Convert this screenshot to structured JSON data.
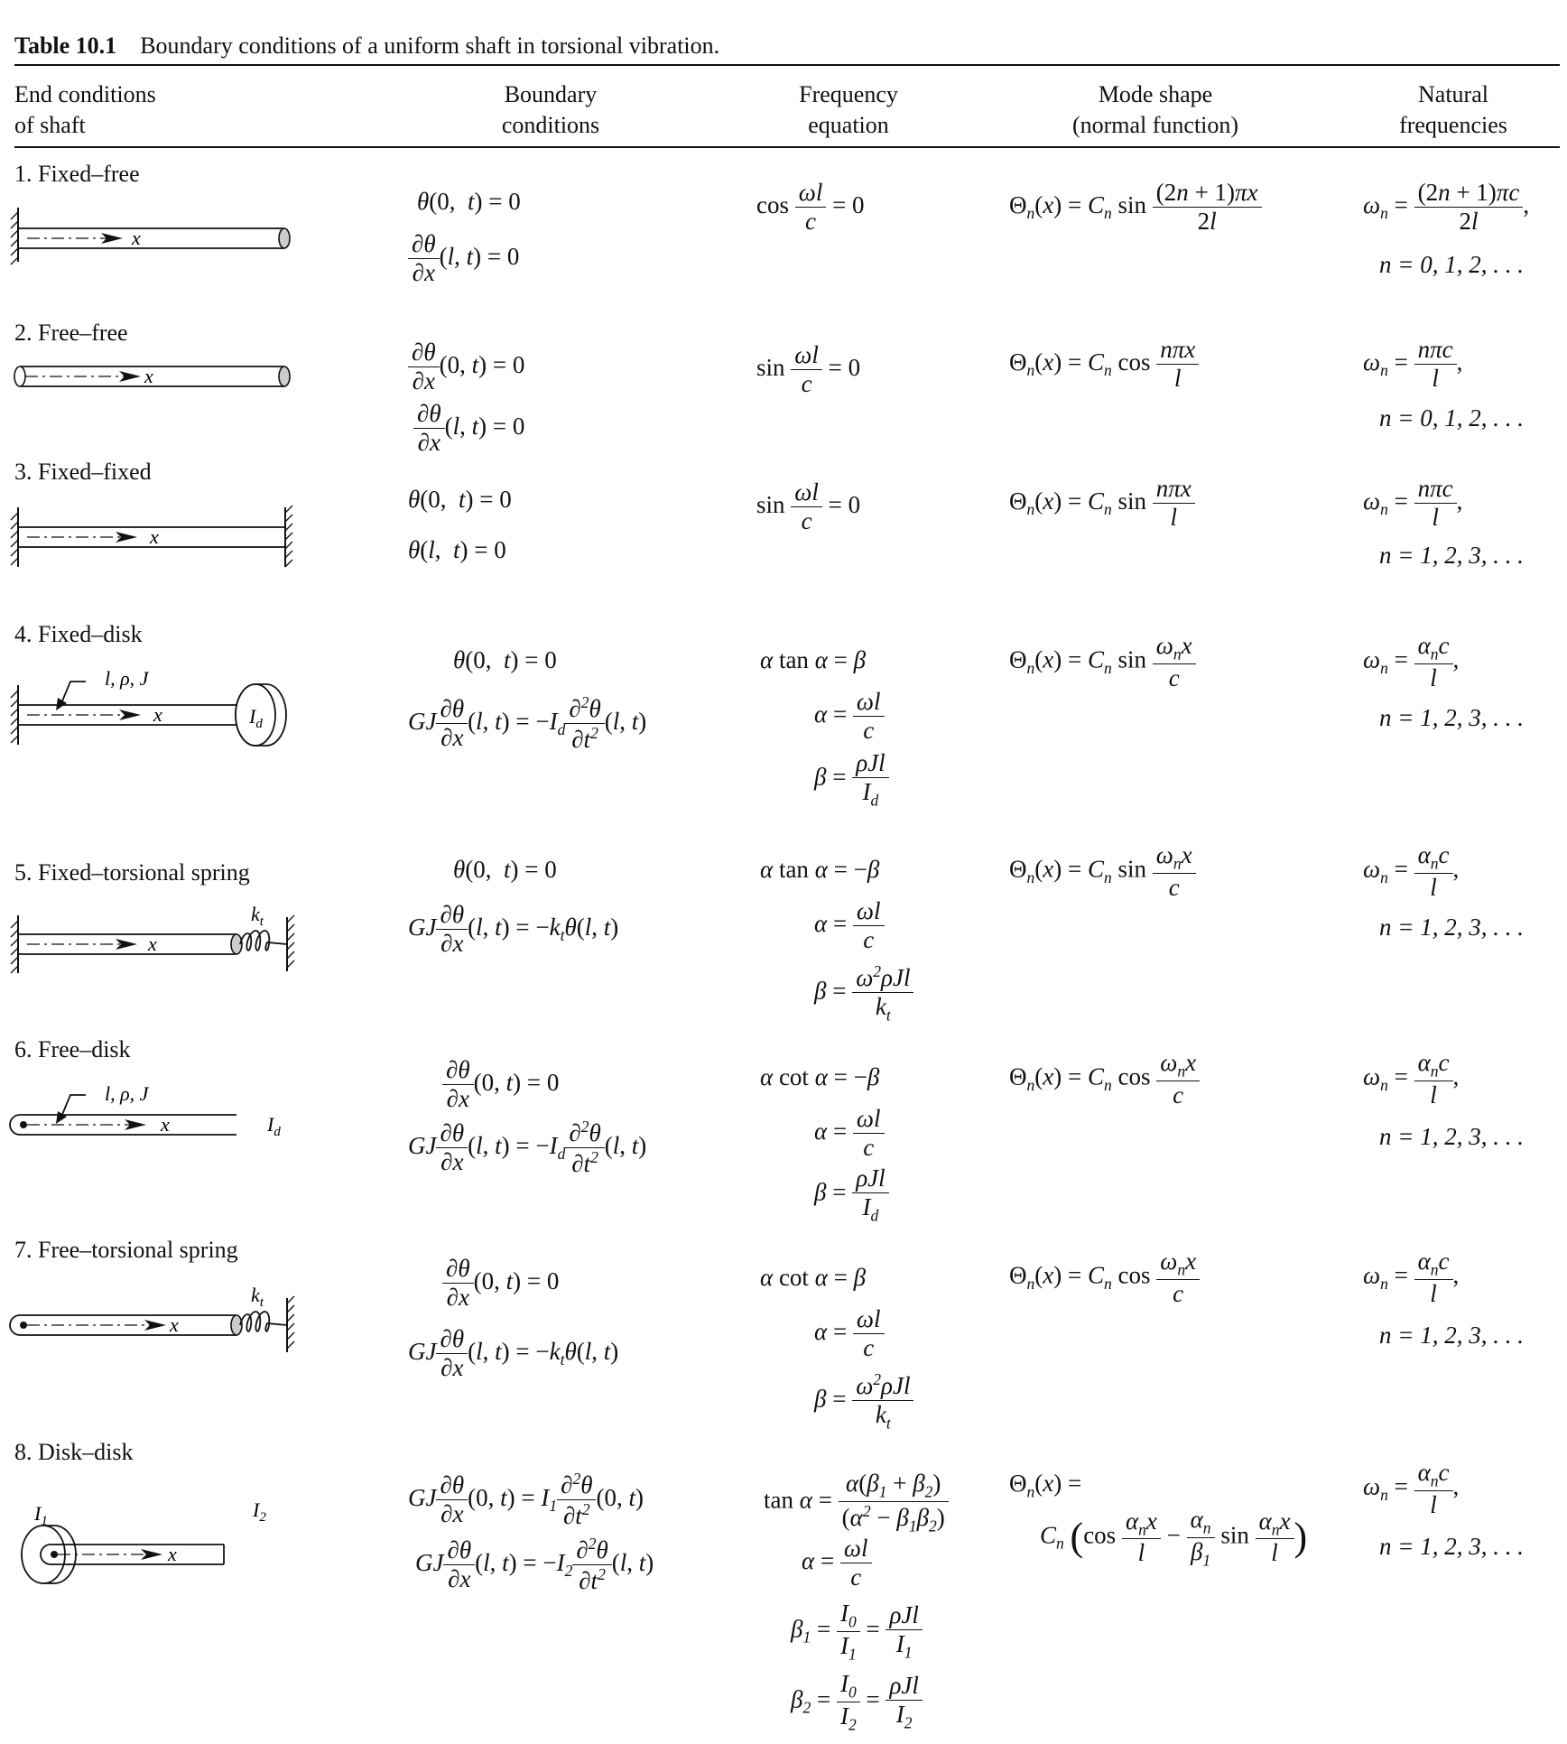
{
  "table": {
    "number": "Table 10.1",
    "caption": "Boundary conditions of a uniform shaft in torsional vibration.",
    "headers": {
      "end": [
        "End conditions",
        "of shaft"
      ],
      "bc": [
        "Boundary",
        "conditions"
      ],
      "freq": [
        "Frequency",
        "equation"
      ],
      "mode": [
        "Mode shape",
        "(normal function)"
      ],
      "nat": [
        "Natural",
        "frequencies"
      ]
    },
    "rows": [
      {
        "title": "1. Fixed–free",
        "figure": "fixed-free-shaft-icon",
        "n_range": "n = 0, 1, 2, . . ."
      },
      {
        "title": "2. Free–free",
        "figure": "free-free-shaft-icon",
        "n_range": "n = 0, 1, 2, . . ."
      },
      {
        "title": "3. Fixed–fixed",
        "figure": "fixed-fixed-shaft-icon",
        "n_range": "n = 1, 2, 3, . . ."
      },
      {
        "title": "4. Fixed–disk",
        "figure": "fixed-disk-shaft-icon",
        "n_range": "n = 1, 2, 3, . . ."
      },
      {
        "title": "5. Fixed–torsional spring",
        "figure": "fixed-spring-shaft-icon",
        "n_range": "n = 1, 2, 3, . . ."
      },
      {
        "title": "6. Free–disk",
        "figure": "free-disk-shaft-icon",
        "n_range": "n = 1, 2, 3, . . ."
      },
      {
        "title": "7. Free–torsional spring",
        "figure": "free-spring-shaft-icon",
        "n_range": "n = 1, 2, 3, . . ."
      },
      {
        "title": "8. Disk–disk",
        "figure": "disk-disk-shaft-icon",
        "n_range": "n = 1, 2, 3, . . ."
      }
    ],
    "figure_labels": {
      "x": "x",
      "params": "l, ρ, J",
      "disk": "I",
      "disk_sub": "d",
      "spring": "k",
      "spring_sub": "t",
      "disk1": "I",
      "disk1_sub": "1",
      "disk2": "I",
      "disk2_sub": "2"
    }
  }
}
